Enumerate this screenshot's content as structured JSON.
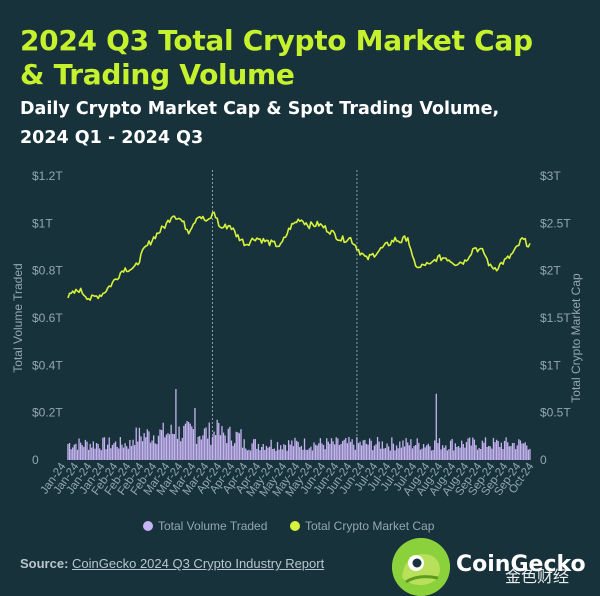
{
  "header": {
    "title_line1": "2024 Q3 Total Crypto Market Cap",
    "title_line2": "& Trading Volume",
    "subtitle_line1": "Daily Crypto Market Cap & Spot Trading Volume,",
    "subtitle_line2": "2024 Q1 - 2024 Q3"
  },
  "colors": {
    "background": "#17323b",
    "accent": "#c5f12d",
    "volume": "#c6b4f2",
    "marketcap": "#d7f23a",
    "axis_text": "#93a7ae",
    "divider": "#8aa0a8"
  },
  "chart_data": {
    "type": "bar+line",
    "title": "Daily Crypto Market Cap & Spot Trading Volume, 2024 Q1 - 2024 Q3",
    "x_ticks": [
      "Jan-24",
      "Jan-24",
      "Jan-24",
      "Jan-24",
      "Feb-24",
      "Feb-24",
      "Feb-24",
      "Feb-24",
      "Mar-24",
      "Mar-24",
      "Mar-24",
      "Mar-24",
      "Apr-24",
      "Apr-24",
      "Apr-24",
      "Apr-24",
      "May-24",
      "May-24",
      "May-24",
      "May-24",
      "Jun-24",
      "Jun-24",
      "Jun-24",
      "Jun-24",
      "Jul-24",
      "Jul-24",
      "Jul-24",
      "Jul-24",
      "Aug-24",
      "Aug-24",
      "Aug-24",
      "Aug-24",
      "Sep-24",
      "Sep-24",
      "Sep-24",
      "Sep-24",
      "Oct-24"
    ],
    "y_left": {
      "label": "Total Volume Traded",
      "ticks": [
        "0",
        "$0.2T",
        "$0.4T",
        "$0.6T",
        "$0.8T",
        "$1T",
        "$1.2T"
      ],
      "range": [
        0,
        1.2
      ]
    },
    "y_right": {
      "label": "Total Crypto Market Cap",
      "ticks": [
        "0",
        "$0.5T",
        "$1T",
        "$1.5T",
        "$2T",
        "$2.5T",
        "$3T"
      ],
      "range": [
        0,
        3
      ]
    },
    "quarter_dividers": [
      "Apr-24",
      "Jul-24"
    ],
    "market_cap_keypoints": [
      [
        0,
        1.72
      ],
      [
        7,
        1.8
      ],
      [
        14,
        1.7
      ],
      [
        22,
        1.76
      ],
      [
        28,
        1.87
      ],
      [
        35,
        2.02
      ],
      [
        42,
        2.02
      ],
      [
        48,
        2.22
      ],
      [
        55,
        2.37
      ],
      [
        62,
        2.49
      ],
      [
        66,
        2.6
      ],
      [
        71,
        2.54
      ],
      [
        76,
        2.42
      ],
      [
        82,
        2.59
      ],
      [
        88,
        2.51
      ],
      [
        92,
        2.62
      ],
      [
        96,
        2.45
      ],
      [
        102,
        2.48
      ],
      [
        106,
        2.38
      ],
      [
        112,
        2.28
      ],
      [
        118,
        2.35
      ],
      [
        126,
        2.3
      ],
      [
        134,
        2.26
      ],
      [
        140,
        2.46
      ],
      [
        146,
        2.55
      ],
      [
        152,
        2.48
      ],
      [
        158,
        2.49
      ],
      [
        165,
        2.42
      ],
      [
        172,
        2.33
      ],
      [
        178,
        2.34
      ],
      [
        184,
        2.2
      ],
      [
        188,
        2.12
      ],
      [
        194,
        2.19
      ],
      [
        200,
        2.26
      ],
      [
        206,
        2.33
      ],
      [
        210,
        2.31
      ],
      [
        214,
        2.36
      ],
      [
        217,
        2.12
      ],
      [
        221,
        2.02
      ],
      [
        225,
        2.07
      ],
      [
        228,
        2.05
      ],
      [
        232,
        2.13
      ],
      [
        238,
        2.14
      ],
      [
        244,
        2.08
      ],
      [
        250,
        2.1
      ],
      [
        256,
        2.25
      ],
      [
        262,
        2.19
      ],
      [
        266,
        2.04
      ],
      [
        270,
        2.03
      ],
      [
        274,
        2.09
      ],
      [
        278,
        2.14
      ],
      [
        282,
        2.22
      ],
      [
        286,
        2.33
      ],
      [
        290,
        2.28
      ]
    ],
    "volume_baseline_T": 0.07,
    "volume_spikes": [
      {
        "date": "Mar-24",
        "value_T": 0.3
      },
      {
        "date": "Mar-24",
        "value_T": 0.22
      },
      {
        "date": "Apr-24",
        "value_T": 0.17
      },
      {
        "date": "Aug-24",
        "value_T": 0.28
      }
    ],
    "legend": [
      "Total Volume Traded",
      "Total Crypto Market Cap"
    ]
  },
  "footer": {
    "source_label": "Source:",
    "source_text": "CoinGecko 2024 Q3 Crypto Industry Report",
    "brand": "CoinGecko",
    "watermark": "金色财经"
  }
}
